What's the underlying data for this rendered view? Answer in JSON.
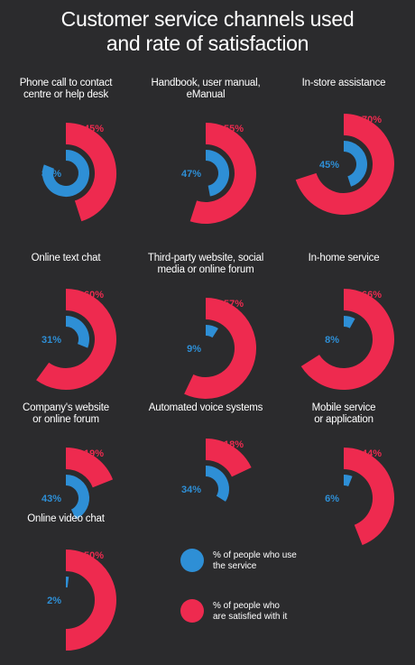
{
  "title": [
    "Customer service channels used",
    "and rate of satisfaction"
  ],
  "colors": {
    "background": "#2b2b2d",
    "use": "#2e8fd6",
    "satisfied": "#ee2a4f",
    "text": "#ffffff"
  },
  "legend": [
    {
      "color": "#2e8fd6",
      "lines": [
        "% of people who use",
        "the service"
      ]
    },
    {
      "color": "#ee2a4f",
      "lines": [
        "% of people who",
        "are satisfied with it"
      ]
    }
  ],
  "chart_data": [
    {
      "type": "donut",
      "category": [
        "Phone call to contact",
        "centre or help desk"
      ],
      "series": [
        {
          "name": "% of people who use the service",
          "value": 81,
          "label": "81%"
        },
        {
          "name": "% of people who are satisfied with it",
          "value": 45,
          "label": "45%"
        }
      ]
    },
    {
      "type": "donut",
      "category": [
        "Handbook, user manual,",
        "eManual"
      ],
      "series": [
        {
          "name": "% of people who use the service",
          "value": 47,
          "label": "47%"
        },
        {
          "name": "% of people who are satisfied with it",
          "value": 55,
          "label": "55%"
        }
      ]
    },
    {
      "type": "donut",
      "category": [
        "In-store assistance"
      ],
      "series": [
        {
          "name": "% of people who use the service",
          "value": 45,
          "label": "45%"
        },
        {
          "name": "% of people who are satisfied with it",
          "value": 70,
          "label": "70%"
        }
      ]
    },
    {
      "type": "donut",
      "category": [
        "Online text chat"
      ],
      "series": [
        {
          "name": "% of people who use the service",
          "value": 31,
          "label": "31%"
        },
        {
          "name": "% of people who are satisfied with it",
          "value": 60,
          "label": "60%"
        }
      ]
    },
    {
      "type": "donut",
      "category": [
        "Third-party website, social",
        "media or online forum"
      ],
      "series": [
        {
          "name": "% of people who use the service",
          "value": 9,
          "label": "9%"
        },
        {
          "name": "% of people who are satisfied with it",
          "value": 57,
          "label": "57%"
        }
      ]
    },
    {
      "type": "donut",
      "category": [
        "In-home service"
      ],
      "series": [
        {
          "name": "% of people who use the service",
          "value": 8,
          "label": "8%"
        },
        {
          "name": "% of people who are satisfied with it",
          "value": 66,
          "label": "66%"
        }
      ]
    },
    {
      "type": "donut",
      "category": [
        "Company's website",
        "or online forum"
      ],
      "series": [
        {
          "name": "% of people who use the service",
          "value": 43,
          "label": "43%"
        },
        {
          "name": "% of people who are satisfied with it",
          "value": 19,
          "label": "19%"
        }
      ]
    },
    {
      "type": "donut",
      "category": [
        "Automated voice systems"
      ],
      "series": [
        {
          "name": "% of people who use the service",
          "value": 34,
          "label": "34%"
        },
        {
          "name": "% of people who are satisfied with it",
          "value": 18,
          "label": "18%"
        }
      ]
    },
    {
      "type": "donut",
      "category": [
        "Mobile service",
        "or application"
      ],
      "series": [
        {
          "name": "% of people who use the service",
          "value": 6,
          "label": "6%"
        },
        {
          "name": "% of people who are satisfied with it",
          "value": 44,
          "label": "44%"
        }
      ]
    },
    {
      "type": "donut",
      "category": [
        "Online video chat"
      ],
      "series": [
        {
          "name": "% of people who use the service",
          "value": 2,
          "label": "2%"
        },
        {
          "name": "% of people who are satisfied with it",
          "value": 50,
          "label": "50%"
        }
      ]
    }
  ]
}
